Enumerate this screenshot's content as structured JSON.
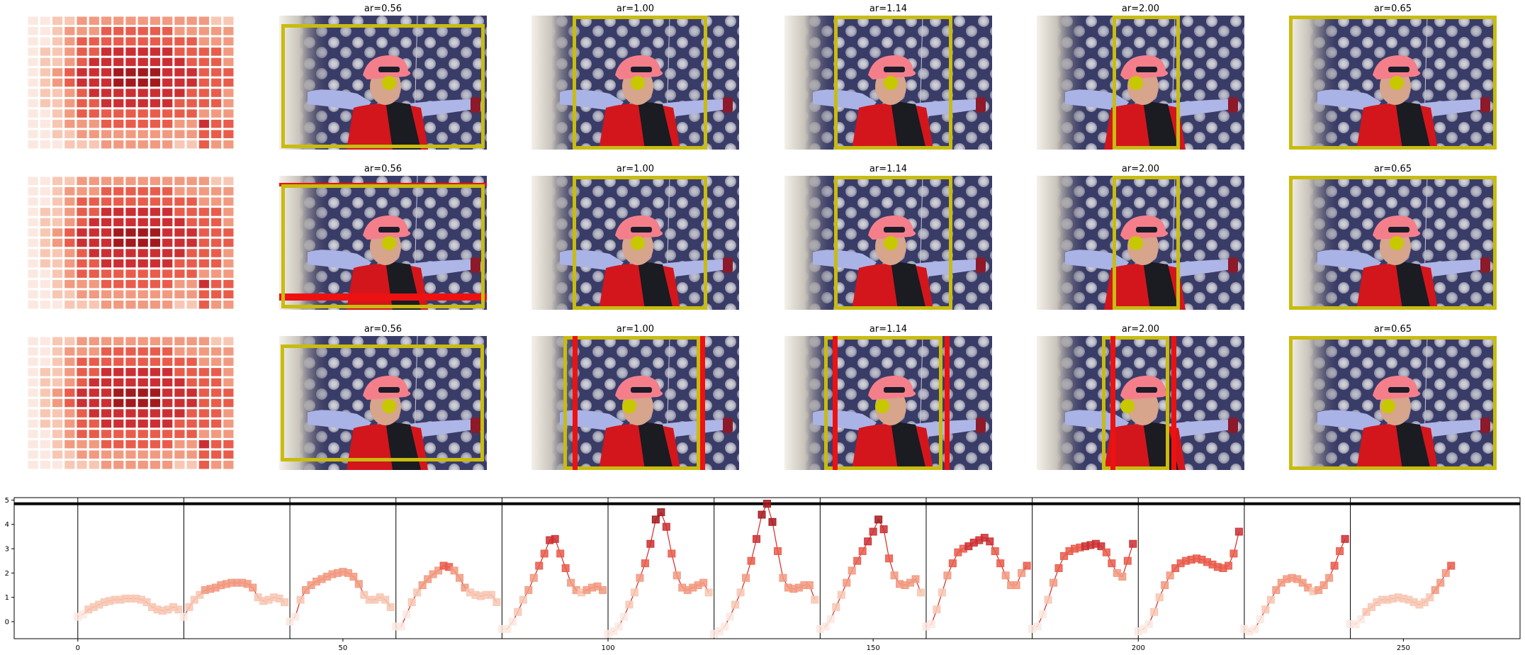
{
  "chart_data": [
    {
      "type": "image-grid",
      "rows": 3,
      "columns": [
        "heatmap",
        "photo",
        "photo",
        "photo",
        "photo",
        "photo"
      ],
      "panel_titles": [
        [
          "",
          "ar=0.56",
          "ar=1.00",
          "ar=1.14",
          "ar=2.00",
          "ar=0.65"
        ],
        [
          "",
          "ar=0.56",
          "ar=1.00",
          "ar=1.14",
          "ar=2.00",
          "ar=0.65"
        ],
        [
          "",
          "ar=0.56",
          "ar=1.00",
          "ar=1.14",
          "ar=2.00",
          "ar=0.65"
        ]
      ],
      "crop_box_color": "#c8bc10",
      "alt_box_color": "#ee1111",
      "focus_point_color": "#c8c800",
      "heatmap_palette": [
        "#fbe9e1",
        "#f8c7b3",
        "#f29a80",
        "#e95c4b",
        "#cc2f33",
        "#a31a1e"
      ]
    },
    {
      "type": "line",
      "x_ticks": [
        0,
        50,
        100,
        150,
        200,
        250
      ],
      "y_ticks": [
        0,
        1,
        2,
        3,
        4,
        5
      ],
      "xlim": [
        -12,
        272
      ],
      "ylim": [
        -0.7,
        5.1
      ],
      "hline": 4.85,
      "segment_boundaries": [
        0,
        20,
        40,
        60,
        80,
        100,
        120,
        140,
        160,
        180,
        200,
        220,
        240
      ],
      "line_color": "#d62728",
      "marker": "square",
      "series": [
        {
          "x": [
            0,
            1,
            2,
            3,
            4,
            5,
            6,
            7,
            8,
            9,
            10,
            11,
            12,
            13,
            14,
            15,
            16,
            17,
            18,
            19,
            20,
            21,
            22,
            23,
            24,
            25,
            26,
            27,
            28,
            29,
            30,
            31,
            32,
            33,
            34,
            35,
            36,
            37,
            38,
            39,
            40,
            41,
            42,
            43,
            44,
            45,
            46,
            47,
            48,
            49,
            50,
            51,
            52,
            53,
            54,
            55,
            56,
            57,
            58,
            59,
            60,
            61,
            62,
            63,
            64,
            65,
            66,
            67,
            68,
            69,
            70,
            71,
            72,
            73,
            74,
            75,
            76,
            77,
            78,
            79,
            80,
            81,
            82,
            83,
            84,
            85,
            86,
            87,
            88,
            89,
            90,
            91,
            92,
            93,
            94,
            95,
            96,
            97,
            98,
            99,
            100,
            101,
            102,
            103,
            104,
            105,
            106,
            107,
            108,
            109,
            110,
            111,
            112,
            113,
            114,
            115,
            116,
            117,
            118,
            119,
            120,
            121,
            122,
            123,
            124,
            125,
            126,
            127,
            128,
            129,
            130,
            131,
            132,
            133,
            134,
            135,
            136,
            137,
            138,
            139,
            140,
            141,
            142,
            143,
            144,
            145,
            146,
            147,
            148,
            149,
            150,
            151,
            152,
            153,
            154,
            155,
            156,
            157,
            158,
            159,
            160,
            161,
            162,
            163,
            164,
            165,
            166,
            167,
            168,
            169,
            170,
            171,
            172,
            173,
            174,
            175,
            176,
            177,
            178,
            179,
            180,
            181,
            182,
            183,
            184,
            185,
            186,
            187,
            188,
            189,
            190,
            191,
            192,
            193,
            194,
            195,
            196,
            197,
            198,
            199,
            200,
            201,
            202,
            203,
            204,
            205,
            206,
            207,
            208,
            209,
            210,
            211,
            212,
            213,
            214,
            215,
            216,
            217,
            218,
            219,
            220,
            221,
            222,
            223,
            224,
            225,
            226,
            227,
            228,
            229,
            230,
            231,
            232,
            233,
            234,
            235,
            236,
            237,
            238,
            239,
            240,
            241,
            242,
            243,
            244,
            245,
            246,
            247,
            248,
            249,
            250,
            251,
            252,
            253,
            254,
            255,
            256,
            257,
            258,
            259
          ],
          "y": [
            0.2,
            0.3,
            0.5,
            0.6,
            0.7,
            0.8,
            0.85,
            0.9,
            0.9,
            0.95,
            0.95,
            0.95,
            0.9,
            0.8,
            0.6,
            0.5,
            0.45,
            0.5,
            0.6,
            0.5,
            0.2,
            0.6,
            0.9,
            1.1,
            1.3,
            1.35,
            1.4,
            1.5,
            1.55,
            1.6,
            1.6,
            1.6,
            1.55,
            1.4,
            1.0,
            0.85,
            0.9,
            1.0,
            0.95,
            0.8,
            0.0,
            0.2,
            0.9,
            1.3,
            1.5,
            1.65,
            1.75,
            1.85,
            1.95,
            2.0,
            2.05,
            2.0,
            1.85,
            1.55,
            1.1,
            0.9,
            0.9,
            1.0,
            0.9,
            0.6,
            -0.2,
            -0.2,
            0.3,
            0.8,
            1.2,
            1.5,
            1.75,
            1.95,
            2.1,
            2.3,
            2.25,
            2.1,
            1.8,
            1.4,
            1.2,
            1.1,
            1.05,
            1.1,
            1.1,
            0.8,
            -0.3,
            -0.3,
            0.0,
            0.4,
            0.9,
            1.3,
            1.8,
            2.3,
            2.8,
            3.35,
            3.4,
            2.8,
            2.2,
            1.6,
            1.3,
            1.2,
            1.3,
            1.4,
            1.45,
            1.3,
            -0.5,
            -0.4,
            -0.2,
            0.2,
            0.7,
            1.2,
            1.8,
            2.4,
            3.2,
            4.2,
            4.5,
            3.9,
            2.8,
            1.9,
            1.4,
            1.3,
            1.4,
            1.5,
            1.6,
            1.2,
            -0.5,
            -0.4,
            -0.2,
            0.2,
            0.7,
            1.2,
            1.8,
            2.5,
            3.4,
            4.4,
            4.85,
            4.1,
            2.9,
            1.8,
            1.4,
            1.35,
            1.4,
            1.5,
            1.5,
            0.9,
            -0.3,
            -0.2,
            0.1,
            0.6,
            1.1,
            1.6,
            2.1,
            2.5,
            2.9,
            3.3,
            3.7,
            4.2,
            3.8,
            2.6,
            1.9,
            1.55,
            1.5,
            1.6,
            1.75,
            1.2,
            -0.2,
            -0.1,
            0.5,
            1.2,
            1.9,
            2.4,
            2.85,
            3.0,
            3.1,
            3.25,
            3.35,
            3.45,
            3.3,
            2.9,
            2.4,
            1.9,
            1.5,
            1.5,
            2.0,
            2.3,
            -0.3,
            -0.2,
            0.3,
            0.9,
            1.6,
            2.2,
            2.7,
            2.9,
            3.0,
            3.05,
            3.1,
            3.15,
            3.2,
            3.1,
            2.85,
            2.4,
            2.0,
            1.85,
            2.5,
            3.2,
            -0.4,
            -0.3,
            -0.1,
            0.4,
            1.0,
            1.5,
            1.9,
            2.2,
            2.4,
            2.5,
            2.55,
            2.6,
            2.55,
            2.45,
            2.35,
            2.25,
            2.2,
            2.3,
            2.8,
            3.7,
            -0.3,
            -0.4,
            -0.3,
            0.1,
            0.5,
            0.9,
            1.3,
            1.6,
            1.75,
            1.8,
            1.75,
            1.6,
            1.4,
            1.25,
            1.3,
            1.5,
            1.8,
            2.3,
            2.9,
            3.4,
            -0.1,
            -0.1,
            0.1,
            0.4,
            0.6,
            0.8,
            0.9,
            0.9,
            0.95,
            1.0,
            0.95,
            0.9,
            0.8,
            0.7,
            0.8,
            1.0,
            1.3,
            1.6,
            2.0,
            2.3
          ]
        }
      ]
    }
  ]
}
